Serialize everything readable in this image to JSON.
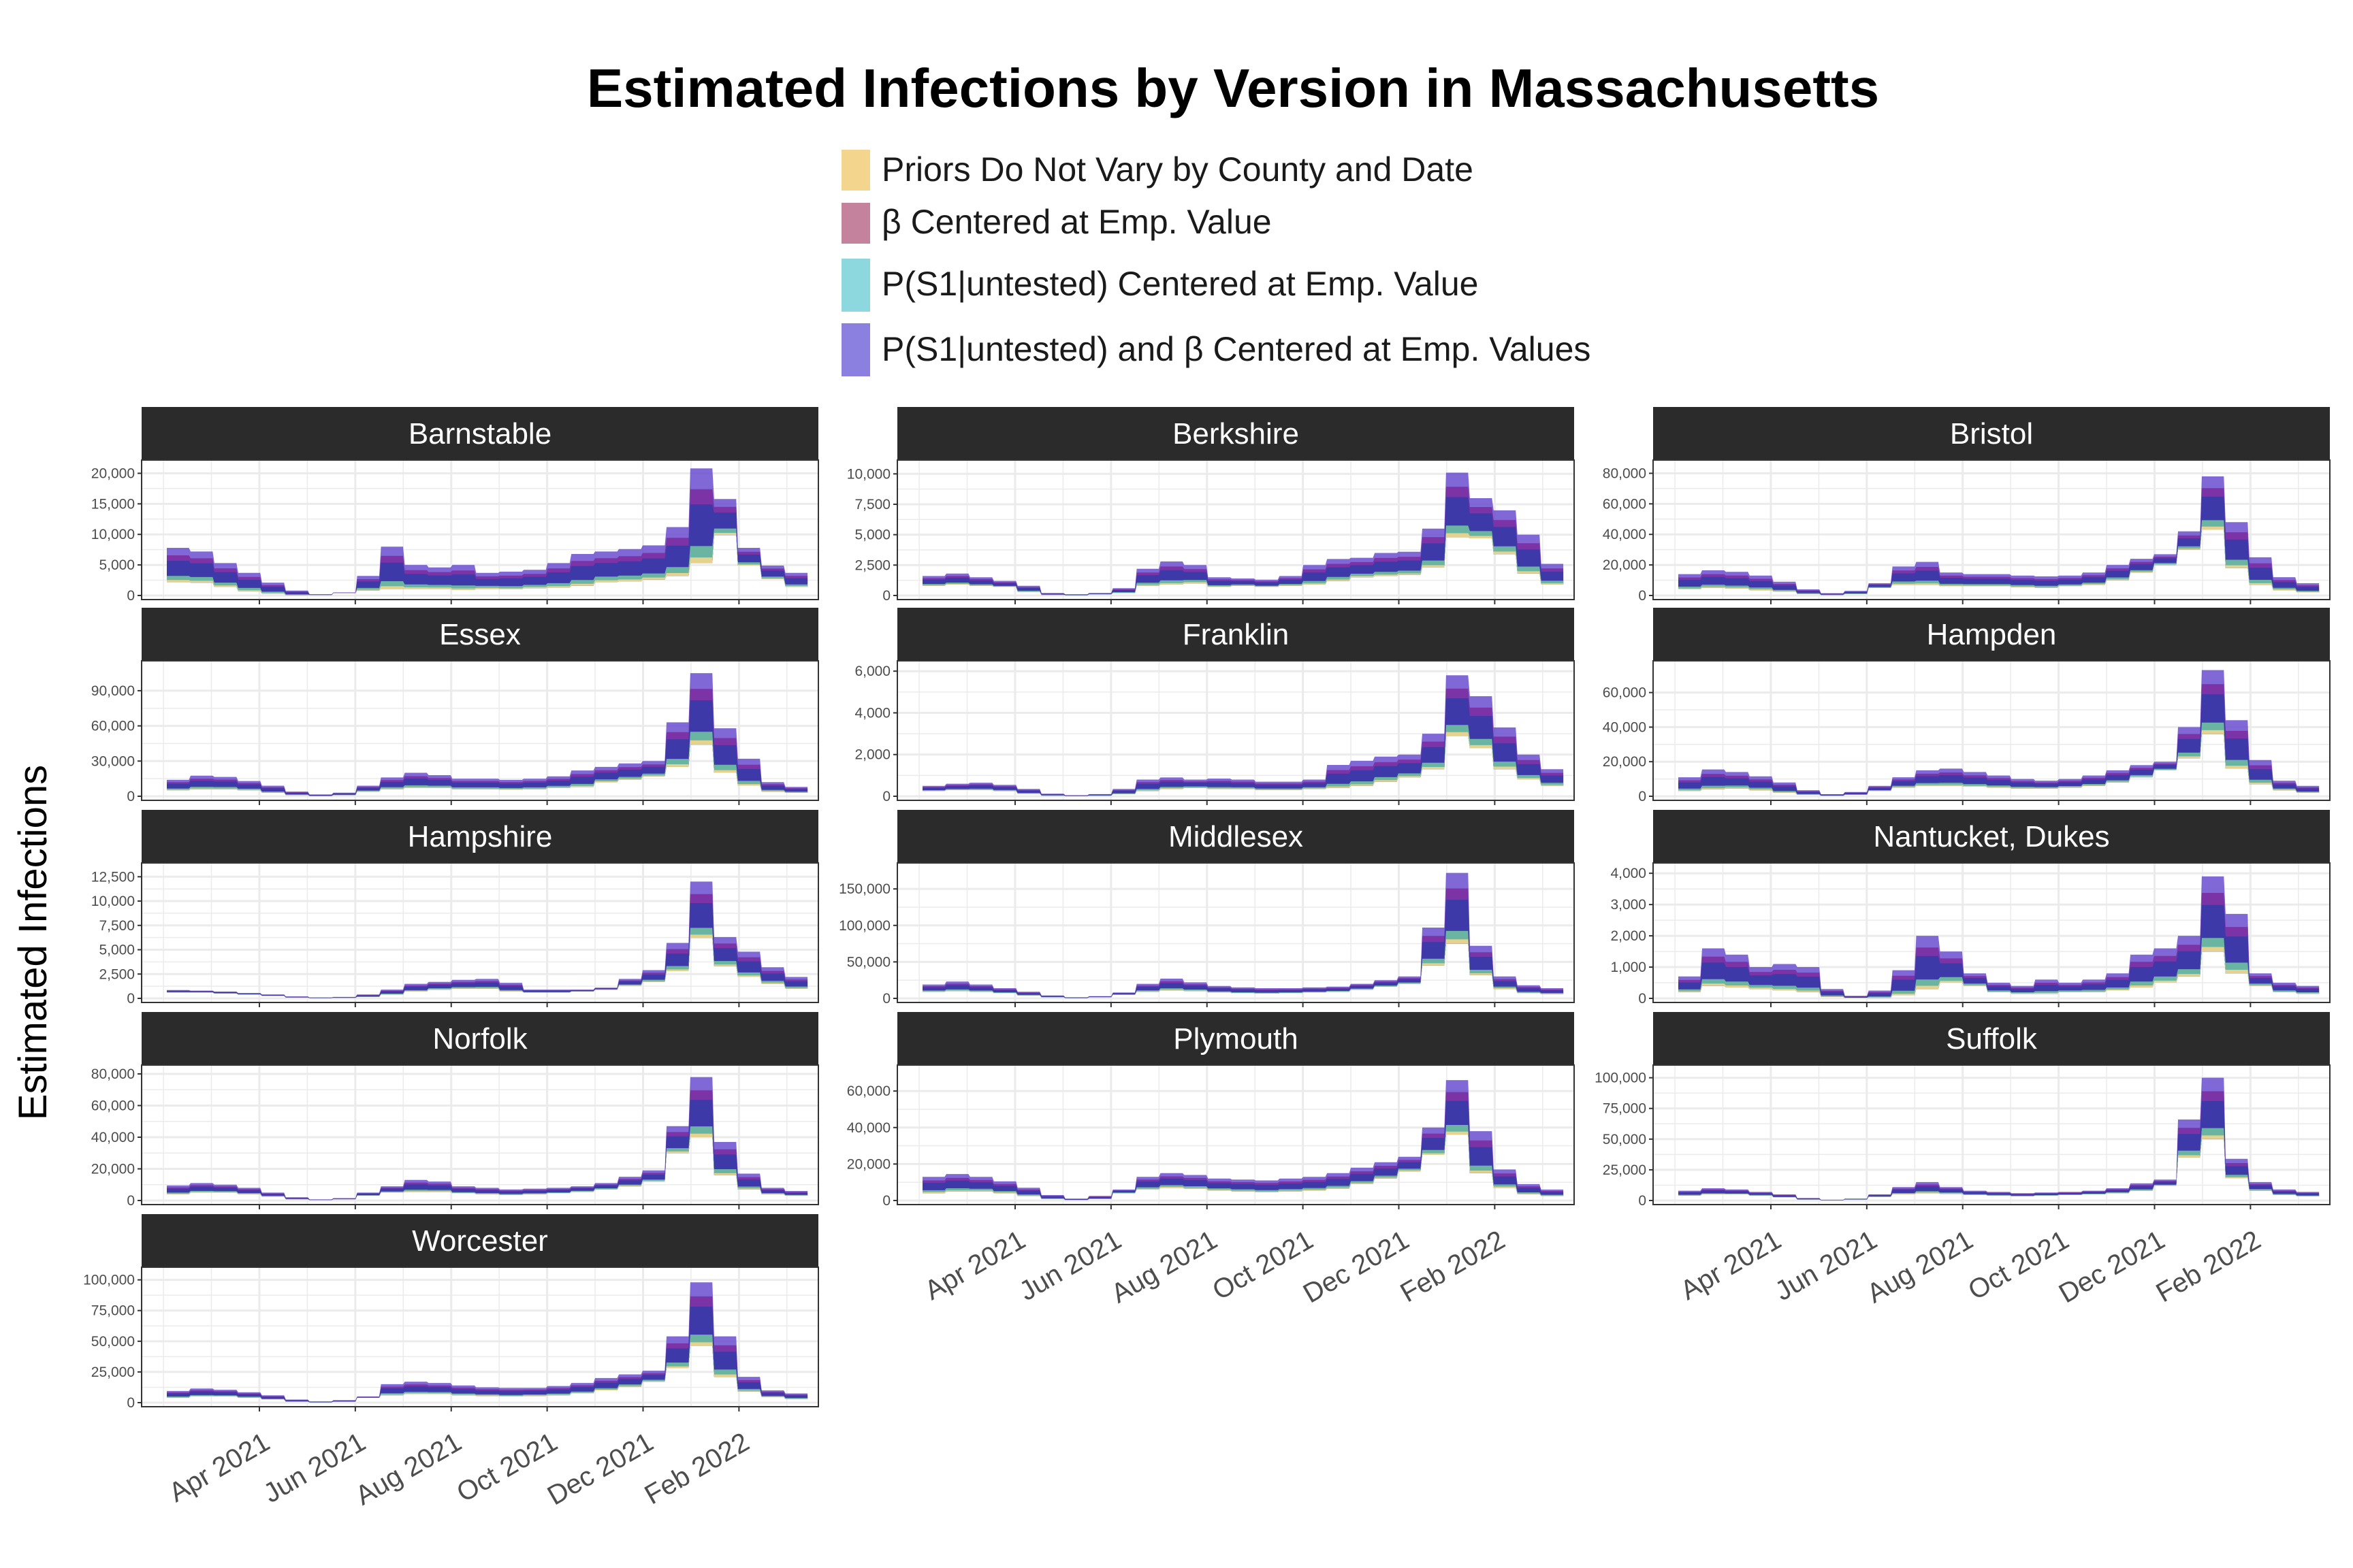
{
  "colors": {
    "series": [
      "#F4D58D",
      "#C4829C",
      "#8DD8DE",
      "#8B80E0"
    ],
    "ribbon_outer": "#6A4FCF",
    "ribbon_mid": "#7B2A9E",
    "ribbon_inner": "#3A3AA8",
    "ribbon_low": "#6FC3A0",
    "strip": "#2B2B2B",
    "grid": "#EBEBEB"
  },
  "chart_data": {
    "type": "area",
    "title": "Estimated Infections by Version in Massachusetts",
    "ylabel": "Estimated Infections",
    "xlabel": "",
    "legend_position": "top",
    "grid": true,
    "legend": [
      {
        "name": "Priors Do Not Vary by County and Date",
        "label": "Priors Do Not Vary by County and Date"
      },
      {
        "name": "β Centered at Emp. Value",
        "label": "β Centered at Emp. Value"
      },
      {
        "name": "P(S1|untested) Centered at Emp. Value",
        "label": "P(S1|untested) Centered at Emp. Value"
      },
      {
        "name": "P(S1|untested) and β Centered at Emp. Values",
        "label": "P(S1|untested) and β Centered at Emp. Values"
      }
    ],
    "x_tick_labels": [
      "Apr 2021",
      "Jun 2021",
      "Aug 2021",
      "Oct 2021",
      "Dec 2021",
      "Feb 2022"
    ],
    "x_tick_months": [
      3,
      5,
      7,
      9,
      11,
      13
    ],
    "x_range_months": [
      0.8,
      14.4
    ],
    "panels": [
      {
        "name": "Barnstable",
        "ylim": [
          0,
          21500
        ],
        "yticks": [
          0,
          5000,
          10000,
          15000,
          20000
        ],
        "ytick_labels": [
          "0",
          "5,000",
          "10,000",
          "15,000",
          "20,000"
        ],
        "lower": [
          2200,
          2100,
          1400,
          700,
          300,
          50,
          80,
          400,
          800,
          1100,
          1100,
          1100,
          900,
          1100,
          1000,
          1200,
          1300,
          1600,
          2200,
          2300,
          2600,
          3200,
          5300,
          9900,
          4900,
          2700,
          1400
        ],
        "upper": [
          7800,
          7200,
          5300,
          3700,
          2100,
          800,
          200,
          500,
          3200,
          8000,
          5000,
          4600,
          5000,
          3700,
          3900,
          4200,
          5300,
          6800,
          7200,
          7600,
          8200,
          11200,
          20800,
          15800,
          7800,
          4900,
          3700
        ]
      },
      {
        "name": "Berkshire",
        "ylim": [
          0,
          10800
        ],
        "yticks": [
          0,
          2500,
          5000,
          7500,
          10000
        ],
        "ytick_labels": [
          "0",
          "2,500",
          "5,000",
          "7,500",
          "10,000"
        ],
        "lower": [
          800,
          900,
          800,
          700,
          300,
          50,
          20,
          100,
          200,
          800,
          900,
          1000,
          700,
          800,
          700,
          800,
          900,
          1200,
          1500,
          1600,
          1700,
          2300,
          4800,
          4700,
          3400,
          1800,
          900
        ],
        "upper": [
          1600,
          1800,
          1500,
          1200,
          800,
          200,
          100,
          200,
          600,
          2200,
          2800,
          2500,
          1500,
          1400,
          1300,
          1600,
          2500,
          3000,
          3100,
          3500,
          3600,
          5500,
          10100,
          8000,
          7000,
          5000,
          2600
        ]
      },
      {
        "name": "Bristol",
        "ylim": [
          0,
          86000
        ],
        "yticks": [
          0,
          20000,
          40000,
          60000,
          80000
        ],
        "ytick_labels": [
          "0",
          "20,000",
          "40,000",
          "60,000",
          "80,000"
        ],
        "lower": [
          4000,
          5000,
          4500,
          3500,
          2500,
          1000,
          300,
          1000,
          5000,
          7000,
          7000,
          6000,
          6000,
          6000,
          5500,
          5000,
          6000,
          7000,
          10000,
          15000,
          20000,
          30000,
          43000,
          18000,
          7000,
          3500,
          2000
        ],
        "upper": [
          14000,
          16500,
          15500,
          13000,
          9000,
          4000,
          1500,
          3000,
          8000,
          19000,
          22000,
          15000,
          14000,
          14000,
          13000,
          12500,
          13000,
          15000,
          20000,
          24000,
          27000,
          42000,
          78000,
          48000,
          25000,
          12000,
          8000
        ]
      },
      {
        "name": "Essex",
        "ylim": [
          0,
          112000
        ],
        "yticks": [
          0,
          30000,
          60000,
          90000
        ],
        "ytick_labels": [
          "0",
          "30,000",
          "60,000",
          "90,000"
        ],
        "lower": [
          5000,
          6000,
          6000,
          5000,
          3000,
          1000,
          200,
          1000,
          4000,
          6000,
          7000,
          7000,
          6000,
          6000,
          5500,
          6000,
          7000,
          8000,
          12000,
          14000,
          17000,
          25000,
          44000,
          20000,
          9000,
          4000,
          3000
        ],
        "upper": [
          14000,
          17500,
          16500,
          13000,
          9000,
          4000,
          1500,
          3000,
          9000,
          16000,
          20000,
          18000,
          15000,
          15000,
          14000,
          15000,
          17000,
          22000,
          25000,
          28000,
          30000,
          63000,
          105000,
          58000,
          32000,
          12000,
          8000
        ]
      },
      {
        "name": "Franklin",
        "ylim": [
          0,
          6300
        ],
        "yticks": [
          0,
          2000,
          4000,
          6000
        ],
        "ytick_labels": [
          "0",
          "2,000",
          "4,000",
          "6,000"
        ],
        "lower": [
          250,
          300,
          300,
          250,
          120,
          30,
          10,
          30,
          100,
          250,
          350,
          400,
          350,
          350,
          300,
          300,
          350,
          400,
          500,
          700,
          900,
          1300,
          2900,
          2300,
          1300,
          800,
          500
        ],
        "upper": [
          500,
          600,
          650,
          550,
          350,
          120,
          50,
          100,
          350,
          800,
          900,
          800,
          850,
          800,
          700,
          700,
          800,
          1500,
          1700,
          1900,
          2000,
          3000,
          5800,
          4800,
          3300,
          2000,
          1300
        ]
      },
      {
        "name": "Hampden",
        "ylim": [
          0,
          76000
        ],
        "yticks": [
          0,
          20000,
          40000,
          60000
        ],
        "ytick_labels": [
          "0",
          "20,000",
          "40,000",
          "60,000"
        ],
        "lower": [
          3000,
          4000,
          4500,
          3500,
          2000,
          800,
          200,
          800,
          3000,
          5000,
          6000,
          6000,
          5500,
          5000,
          4500,
          4500,
          5000,
          6000,
          8000,
          11000,
          15000,
          22000,
          36000,
          16000,
          7000,
          3500,
          2000
        ],
        "upper": [
          11000,
          15500,
          14000,
          11500,
          8000,
          3500,
          1200,
          2500,
          6000,
          11000,
          15000,
          16000,
          14000,
          12000,
          10000,
          9000,
          10000,
          12000,
          15000,
          18000,
          20000,
          40000,
          73000,
          44000,
          21000,
          9000,
          6000
        ]
      },
      {
        "name": "Hampshire",
        "ylim": [
          0,
          13500
        ],
        "yticks": [
          0,
          2500,
          5000,
          7500,
          10000,
          12500
        ],
        "ytick_labels": [
          "0",
          "2,500",
          "5,000",
          "7,500",
          "10,000",
          "12,500"
        ],
        "lower": [
          600,
          600,
          500,
          400,
          250,
          80,
          30,
          60,
          150,
          400,
          700,
          900,
          1000,
          1000,
          700,
          600,
          600,
          700,
          900,
          1300,
          1700,
          2800,
          6200,
          3300,
          2200,
          1500,
          1000
        ],
        "upper": [
          850,
          800,
          700,
          550,
          400,
          200,
          100,
          150,
          400,
          900,
          1500,
          1700,
          1900,
          2000,
          1600,
          900,
          900,
          900,
          1100,
          2000,
          2900,
          5700,
          12000,
          6300,
          4800,
          3200,
          2200
        ]
      },
      {
        "name": "Middlesex",
        "ylim": [
          0,
          180000
        ],
        "yticks": [
          0,
          50000,
          100000,
          150000
        ],
        "ytick_labels": [
          "0",
          "50,000",
          "100,000",
          "150,000"
        ],
        "lower": [
          9000,
          10000,
          9000,
          7000,
          4000,
          1500,
          400,
          1500,
          5000,
          9000,
          11000,
          10000,
          8000,
          7000,
          6500,
          7000,
          8000,
          9000,
          12000,
          16000,
          20000,
          45000,
          75000,
          32000,
          13000,
          7000,
          6000
        ],
        "upper": [
          19000,
          23000,
          19000,
          14000,
          9000,
          4000,
          1500,
          3000,
          8000,
          20000,
          27000,
          22000,
          17000,
          15000,
          14000,
          14000,
          15000,
          16000,
          20000,
          25000,
          30000,
          97000,
          172000,
          72000,
          30000,
          18000,
          14000
        ]
      },
      {
        "name": "Nantucket, Dukes",
        "ylim": [
          0,
          4200
        ],
        "yticks": [
          0,
          1000,
          2000,
          3000,
          4000
        ],
        "ytick_labels": [
          "0",
          "1,000",
          "2,000",
          "3,000",
          "4,000"
        ],
        "lower": [
          200,
          400,
          350,
          300,
          250,
          200,
          50,
          10,
          20,
          100,
          300,
          500,
          400,
          200,
          150,
          150,
          200,
          200,
          250,
          350,
          500,
          700,
          1500,
          800,
          400,
          200,
          150
        ],
        "upper": [
          700,
          1600,
          1400,
          1000,
          1100,
          1000,
          300,
          80,
          250,
          900,
          2000,
          1500,
          800,
          500,
          400,
          600,
          500,
          600,
          800,
          1400,
          1600,
          2000,
          3900,
          2700,
          800,
          500,
          400
        ]
      },
      {
        "name": "Norfolk",
        "ylim": [
          0,
          83000
        ],
        "yticks": [
          0,
          20000,
          40000,
          60000,
          80000
        ],
        "ytick_labels": [
          "0",
          "20,000",
          "40,000",
          "60,000",
          "80,000"
        ],
        "lower": [
          4000,
          5000,
          5000,
          4000,
          2500,
          800,
          200,
          800,
          3000,
          5000,
          5500,
          5500,
          4500,
          4000,
          3500,
          4000,
          4500,
          5500,
          7000,
          9000,
          12000,
          30000,
          40000,
          16000,
          7000,
          4000,
          3000
        ],
        "upper": [
          9500,
          11000,
          10000,
          8000,
          5000,
          2000,
          700,
          1500,
          5000,
          9000,
          13000,
          12000,
          9000,
          8000,
          7000,
          7500,
          8000,
          9000,
          11000,
          15000,
          19000,
          47000,
          78000,
          37000,
          17000,
          8000,
          6000
        ]
      },
      {
        "name": "Plymouth",
        "ylim": [
          0,
          72000
        ],
        "yticks": [
          0,
          20000,
          40000,
          60000
        ],
        "ytick_labels": [
          "0",
          "20,000",
          "40,000",
          "60,000"
        ],
        "lower": [
          4000,
          5000,
          5000,
          4000,
          2500,
          800,
          200,
          800,
          4000,
          6000,
          7000,
          6500,
          5500,
          5000,
          4500,
          5000,
          5500,
          6500,
          9000,
          12000,
          16000,
          25000,
          36000,
          15000,
          7000,
          3500,
          2500
        ],
        "upper": [
          13000,
          14500,
          13000,
          10500,
          7000,
          3000,
          1000,
          2500,
          6000,
          13000,
          15000,
          14000,
          12000,
          11500,
          11000,
          12000,
          13000,
          15000,
          18000,
          21000,
          24000,
          40000,
          66000,
          38000,
          17000,
          9000,
          6000
        ]
      },
      {
        "name": "Suffolk",
        "ylim": [
          0,
          107000
        ],
        "yticks": [
          0,
          25000,
          50000,
          75000,
          100000
        ],
        "ytick_labels": [
          "0",
          "25,000",
          "50,000",
          "75,000",
          "100,000"
        ],
        "lower": [
          4000,
          5000,
          5000,
          4000,
          2500,
          800,
          200,
          800,
          3000,
          5000,
          6000,
          5500,
          4500,
          4000,
          3500,
          4000,
          4500,
          5000,
          6000,
          8000,
          12000,
          35000,
          50000,
          18000,
          8000,
          4500,
          3500
        ],
        "upper": [
          8000,
          10000,
          9000,
          7000,
          5000,
          2000,
          600,
          1500,
          5000,
          11000,
          15000,
          11000,
          8000,
          7000,
          6000,
          6500,
          7000,
          8000,
          10000,
          14000,
          17000,
          66000,
          100000,
          34000,
          15000,
          9000,
          7000
        ]
      },
      {
        "name": "Worcester",
        "ylim": [
          0,
          107000
        ],
        "yticks": [
          0,
          25000,
          50000,
          75000,
          100000
        ],
        "ytick_labels": [
          "0",
          "25,000",
          "50,000",
          "75,000",
          "100,000"
        ],
        "lower": [
          4000,
          5000,
          5000,
          4000,
          2500,
          800,
          200,
          800,
          4000,
          6000,
          7000,
          7000,
          6000,
          5500,
          5000,
          5500,
          6000,
          7500,
          10000,
          13000,
          17000,
          28000,
          46000,
          21000,
          9000,
          4500,
          3000
        ],
        "upper": [
          9500,
          11500,
          10500,
          8500,
          6000,
          2500,
          1000,
          2000,
          5000,
          15000,
          17000,
          16000,
          14000,
          12500,
          12000,
          12000,
          13500,
          16000,
          20000,
          23000,
          26000,
          54000,
          98000,
          54000,
          21000,
          10000,
          7500
        ]
      }
    ]
  }
}
